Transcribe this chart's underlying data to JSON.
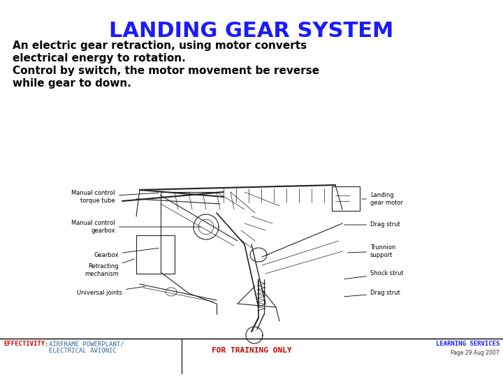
{
  "title": "LANDING GEAR SYSTEM",
  "title_color": "#1a1aff",
  "title_fontsize": 22,
  "body_lines": [
    "An electric gear retraction, using motor converts",
    "electrical energy to rotation.",
    "Control by switch, the motor movement be reverse",
    "while gear to down."
  ],
  "body_fontsize": 11,
  "body_color": "#000000",
  "footer_left_label": "EFFECTIVITY:",
  "footer_left_label_color": "#cc0000",
  "footer_left_text": "AIRFRAME POWERPLANT/\nELECTRICAL AVIONIC",
  "footer_left_text_color": "#336699",
  "footer_center_text": "FOR TRAINING ONLY",
  "footer_center_color": "#cc0000",
  "footer_right_text": "LEARNING SERVICES",
  "footer_right_text2": "Page 29 Aug 2007",
  "footer_right_color": "#1a1aff",
  "footer_right_color2": "#333333",
  "footer_fontsize": 6.5,
  "background_color": "#ffffff",
  "label_fontsize": 6.0,
  "label_color": "#000000",
  "diagram_color": "#222222"
}
